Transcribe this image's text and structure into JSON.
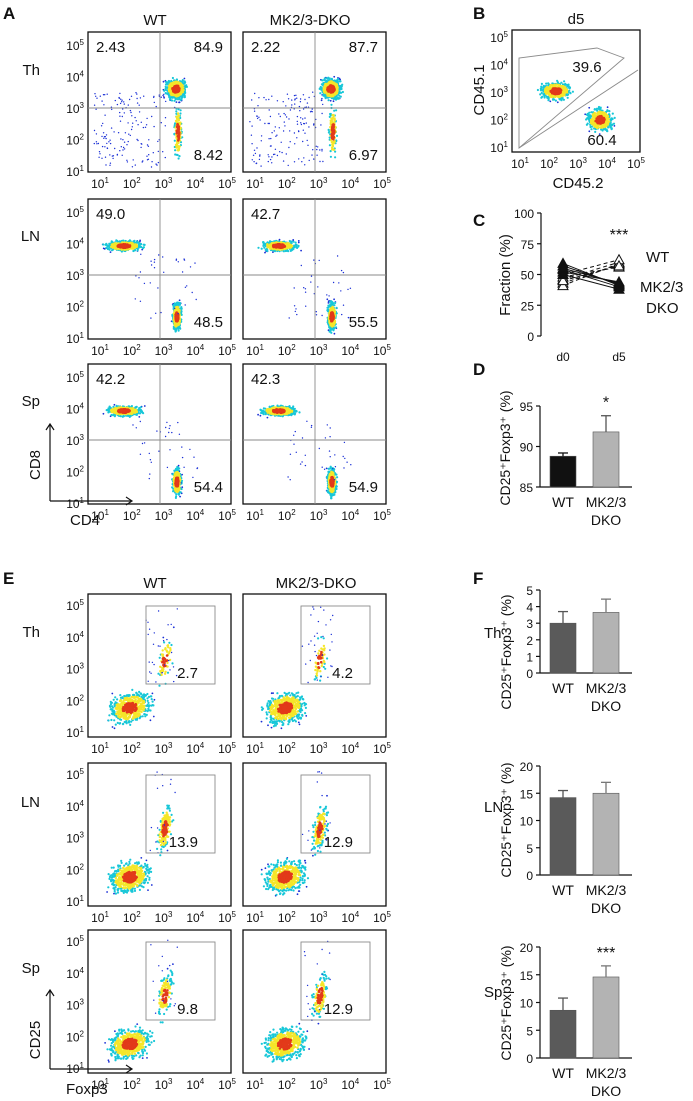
{
  "panel_letters": {
    "A": "A",
    "B": "B",
    "C": "C",
    "D": "D",
    "E": "E",
    "F": "F"
  },
  "headers": {
    "wt": "WT",
    "dko": "MK2/3-DKO"
  },
  "rows": {
    "th": "Th",
    "ln": "LN",
    "sp": "Sp"
  },
  "tick_base": "10",
  "tick_exps": [
    "1",
    "2",
    "3",
    "4",
    "5"
  ],
  "axis_labels": {
    "cd8": "CD8",
    "cd4": "CD4",
    "cd45_1": "CD45.1",
    "cd45_2": "CD45.2",
    "cd25": "CD25",
    "foxp3": "Foxp3"
  },
  "panel_a": {
    "quadrants": [
      {
        "row": "Th",
        "genotype": "WT",
        "cd8_single": "2.43",
        "double_positive": "84.9",
        "cd4_single": "8.42"
      },
      {
        "row": "Th",
        "genotype": "MK2/3-DKO",
        "cd8_single": "2.22",
        "double_positive": "87.7",
        "cd4_single": "6.97"
      },
      {
        "row": "LN",
        "genotype": "WT",
        "cd8_single": "49.0",
        "cd4_single": "48.5"
      },
      {
        "row": "LN",
        "genotype": "MK2/3-DKO",
        "cd8_single": "42.7",
        "cd4_single": "55.5"
      },
      {
        "row": "Sp",
        "genotype": "WT",
        "cd8_single": "42.2",
        "cd4_single": "54.4"
      },
      {
        "row": "Sp",
        "genotype": "MK2/3-DKO",
        "cd8_single": "42.3",
        "cd4_single": "54.9"
      }
    ]
  },
  "panel_b": {
    "title": "d5",
    "upper_gate": "39.6",
    "lower_gate": "60.4"
  },
  "panel_e": {
    "gates": [
      {
        "row": "Th",
        "genotype": "WT",
        "value": "2.7"
      },
      {
        "row": "Th",
        "genotype": "MK2/3-DKO",
        "value": "4.2"
      },
      {
        "row": "LN",
        "genotype": "WT",
        "value": "13.9"
      },
      {
        "row": "LN",
        "genotype": "MK2/3-DKO",
        "value": "12.9"
      },
      {
        "row": "Sp",
        "genotype": "WT",
        "value": "9.8"
      },
      {
        "row": "Sp",
        "genotype": "MK2/3-DKO",
        "value": "12.9"
      }
    ]
  },
  "colors": {
    "density_low": "#1a2fd6",
    "density_mid": "#18c7d8",
    "density_high": "#f5e62a",
    "density_peak": "#e23a1a",
    "bar_wt_d": "#111111",
    "bar_dko": "#b3b3b3",
    "bar_wt_f": "#5a5a5a"
  },
  "chart_data": [
    {
      "panel": "C",
      "type": "line",
      "ylabel": "Fraction (%)",
      "categories": [
        "d0",
        "d5"
      ],
      "ylim": [
        0,
        100
      ],
      "yticks": [
        "0",
        "25",
        "50",
        "75",
        "100"
      ],
      "significance": "***",
      "series": [
        {
          "name": "WT",
          "marker": "triangle-open",
          "line": "dashed",
          "pairs": [
            [
              43,
              58
            ],
            [
              46,
              60
            ],
            [
              48,
              56
            ],
            [
              41,
              59
            ],
            [
              50,
              62
            ],
            [
              45,
              57
            ]
          ]
        },
        {
          "name": "MK2/3 DKO",
          "marker": "triangle-filled",
          "line": "solid",
          "pairs": [
            [
              57,
              42
            ],
            [
              54,
              40
            ],
            [
              52,
              44
            ],
            [
              59,
              41
            ],
            [
              50,
              38
            ],
            [
              55,
              43
            ]
          ]
        }
      ],
      "legend": {
        "wt": "WT",
        "dko_line1": "MK2/3",
        "dko_line2": "DKO"
      }
    },
    {
      "panel": "D",
      "type": "bar",
      "ylabel": "CD25⁺Foxp3⁺ (%)",
      "categories": [
        "WT",
        "MK2/3 DKO"
      ],
      "category_lines": [
        [
          "WT"
        ],
        [
          "MK2/3",
          "DKO"
        ]
      ],
      "values": [
        88.8,
        91.8
      ],
      "errors": [
        0.4,
        2.0
      ],
      "ylim": [
        85,
        95
      ],
      "yticks": [
        "85",
        "90",
        "95"
      ],
      "significance": "*"
    },
    {
      "panel": "F",
      "row": "Th",
      "type": "bar",
      "ylabel": "CD25⁺Foxp3⁺ (%)",
      "categories": [
        "WT",
        "MK2/3 DKO"
      ],
      "category_lines": [
        [
          "WT"
        ],
        [
          "MK2/3",
          "DKO"
        ]
      ],
      "values": [
        3.0,
        3.65
      ],
      "errors": [
        0.7,
        0.8
      ],
      "ylim": [
        0,
        5
      ],
      "yticks": [
        "0",
        "1",
        "2",
        "3",
        "4",
        "5"
      ],
      "significance": ""
    },
    {
      "panel": "F",
      "row": "LN",
      "type": "bar",
      "ylabel": "CD25⁺Foxp3⁺ (%)",
      "categories": [
        "WT",
        "MK2/3 DKO"
      ],
      "category_lines": [
        [
          "WT"
        ],
        [
          "MK2/3",
          "DKO"
        ]
      ],
      "values": [
        14.2,
        15.0
      ],
      "errors": [
        1.3,
        2.0
      ],
      "ylim": [
        0,
        20
      ],
      "yticks": [
        "0",
        "5",
        "10",
        "15",
        "20"
      ],
      "significance": ""
    },
    {
      "panel": "F",
      "row": "Sp",
      "type": "bar",
      "ylabel": "CD25⁺Foxp3⁺ (%)",
      "categories": [
        "WT",
        "MK2/3 DKO"
      ],
      "category_lines": [
        [
          "WT"
        ],
        [
          "MK2/3",
          "DKO"
        ]
      ],
      "values": [
        8.6,
        14.6
      ],
      "errors": [
        2.2,
        2.0
      ],
      "ylim": [
        0,
        20
      ],
      "yticks": [
        "0",
        "5",
        "10",
        "15",
        "20"
      ],
      "significance": "***"
    }
  ]
}
